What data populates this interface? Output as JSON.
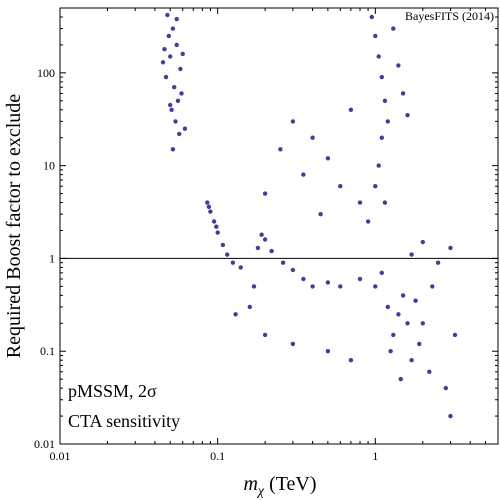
{
  "chart_data": {
    "type": "scatter",
    "title": "",
    "xlabel": "m_χ (TeV)",
    "xlabel_parts": {
      "symbol": "m",
      "subscript": "χ",
      "unit": " (TeV)"
    },
    "ylabel": "Required Boost factor to exclude",
    "x_scale": "log",
    "y_scale": "log",
    "xlim": [
      0.01,
      6
    ],
    "ylim": [
      0.01,
      500
    ],
    "x_ticks": [
      {
        "value": 0.01,
        "label": "0.01"
      },
      {
        "value": 0.1,
        "label": "0.1"
      },
      {
        "value": 1,
        "label": "1"
      }
    ],
    "y_ticks": [
      {
        "value": 0.01,
        "label": "0.01"
      },
      {
        "value": 0.1,
        "label": "0.1"
      },
      {
        "value": 1,
        "label": "1"
      },
      {
        "value": 10,
        "label": "10"
      },
      {
        "value": 100,
        "label": "100"
      }
    ],
    "reference_line": {
      "y": 1,
      "color": "#000000"
    },
    "annotations": [
      "pMSSM, 2σ",
      "CTA sensitivity"
    ],
    "credit": "BayesFITS (2014)",
    "grid": false,
    "legend": "none",
    "marker_color": "#3f3f99",
    "series": [
      {
        "values": [
          [
            0.048,
            420
          ],
          [
            0.052,
            300
          ],
          [
            0.055,
            200
          ],
          [
            0.05,
            150
          ],
          [
            0.058,
            110
          ],
          [
            0.047,
            90
          ],
          [
            0.053,
            70
          ],
          [
            0.056,
            50
          ],
          [
            0.051,
            40
          ],
          [
            0.054,
            30
          ],
          [
            0.057,
            22
          ],
          [
            0.052,
            15
          ],
          [
            0.055,
            380
          ],
          [
            0.049,
            250
          ],
          [
            0.06,
            160
          ],
          [
            0.045,
            130
          ],
          [
            0.059,
            60
          ],
          [
            0.05,
            45
          ],
          [
            0.062,
            25
          ],
          [
            0.046,
            180
          ],
          [
            0.086,
            4
          ],
          [
            0.09,
            3.2
          ],
          [
            0.095,
            2.5
          ],
          [
            0.1,
            1.9
          ],
          [
            0.108,
            1.4
          ],
          [
            0.115,
            1.1
          ],
          [
            0.125,
            0.9
          ],
          [
            0.14,
            0.8
          ],
          [
            0.088,
            3.6
          ],
          [
            0.098,
            2.2
          ],
          [
            0.18,
            1.3
          ],
          [
            0.2,
            1.6
          ],
          [
            0.22,
            1.2
          ],
          [
            0.26,
            0.9
          ],
          [
            0.3,
            0.75
          ],
          [
            0.35,
            0.6
          ],
          [
            0.4,
            0.5
          ],
          [
            0.5,
            0.55
          ],
          [
            0.6,
            0.5
          ],
          [
            0.19,
            1.8
          ],
          [
            0.8,
            0.6
          ],
          [
            1.0,
            0.5
          ],
          [
            1.2,
            0.3
          ],
          [
            1.4,
            0.25
          ],
          [
            1.6,
            0.2
          ],
          [
            1.3,
            0.15
          ],
          [
            1.5,
            0.4
          ],
          [
            1.8,
            0.35
          ],
          [
            2.0,
            0.2
          ],
          [
            1.1,
            0.7
          ],
          [
            1.25,
            0.1
          ],
          [
            1.7,
            0.08
          ],
          [
            2.2,
            0.06
          ],
          [
            1.9,
            0.12
          ],
          [
            1.45,
            0.05
          ],
          [
            2.5,
            0.9
          ],
          [
            3.0,
            1.3
          ],
          [
            2.0,
            1.5
          ],
          [
            1.7,
            1.1
          ],
          [
            2.3,
            0.5
          ],
          [
            0.95,
            400
          ],
          [
            1.0,
            250
          ],
          [
            1.05,
            150
          ],
          [
            1.1,
            90
          ],
          [
            1.15,
            50
          ],
          [
            1.2,
            30
          ],
          [
            1.1,
            20
          ],
          [
            1.05,
            10
          ],
          [
            1.0,
            6
          ],
          [
            1.15,
            4
          ],
          [
            0.9,
            2.5
          ],
          [
            1.3,
            300
          ],
          [
            1.4,
            120
          ],
          [
            1.5,
            60
          ],
          [
            1.6,
            35
          ],
          [
            0.3,
            30
          ],
          [
            0.25,
            15
          ],
          [
            0.35,
            8
          ],
          [
            0.4,
            20
          ],
          [
            0.5,
            12
          ],
          [
            0.7,
            40
          ],
          [
            0.6,
            6
          ],
          [
            0.2,
            5
          ],
          [
            0.45,
            3
          ],
          [
            0.8,
            4
          ],
          [
            0.16,
            0.3
          ],
          [
            0.2,
            0.15
          ],
          [
            0.3,
            0.12
          ],
          [
            0.5,
            0.1
          ],
          [
            0.7,
            0.08
          ],
          [
            2.8,
            0.04
          ],
          [
            3.0,
            0.02
          ],
          [
            0.17,
            0.5
          ],
          [
            0.13,
            0.25
          ],
          [
            3.2,
            0.15
          ]
        ]
      }
    ]
  }
}
